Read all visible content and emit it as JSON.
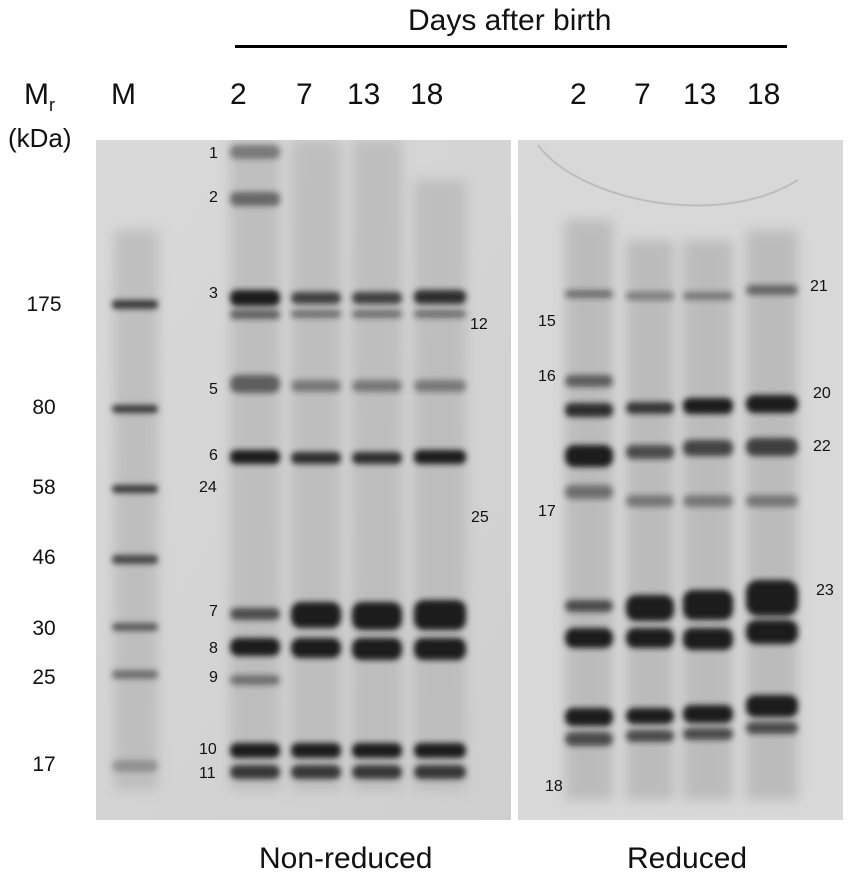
{
  "header": {
    "days_label": "Days after birth"
  },
  "axis": {
    "mr_main": "M",
    "mr_sub": "r",
    "unit": "(kDa)"
  },
  "marker_lane_label": "M",
  "lanes_nonreduced": [
    "2",
    "7",
    "13",
    "18"
  ],
  "lanes_reduced": [
    "2",
    "7",
    "13",
    "18"
  ],
  "marker_weights": [
    "175",
    "80",
    "58",
    "46",
    "30",
    "25",
    "17"
  ],
  "band_labels_nonreduced_left": [
    "1",
    "2",
    "3",
    "5",
    "6",
    "24",
    "7",
    "8",
    "9",
    "10",
    "11"
  ],
  "band_labels_nonreduced_right": [
    "12",
    "25"
  ],
  "band_labels_reduced_left": [
    "15",
    "16",
    "17",
    "18"
  ],
  "band_labels_reduced_right": [
    "21",
    "20",
    "22",
    "23"
  ],
  "conditions": {
    "non_reduced": "Non-reduced",
    "reduced": "Reduced"
  },
  "colors": {
    "gel_background": "#d6d6d6",
    "band": "#1e1e1e"
  }
}
